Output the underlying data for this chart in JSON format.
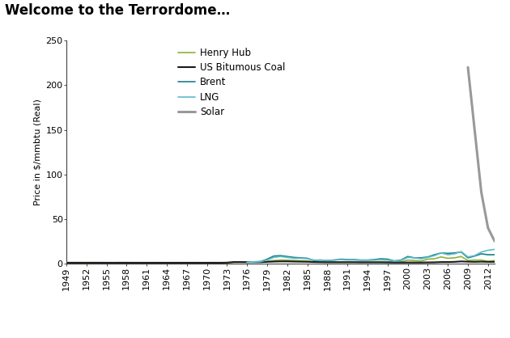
{
  "title": "Welcome to the Terrordome…",
  "ylabel": "Price in $/mmbtu (Real)",
  "henry_hub_color": "#8db33a",
  "coal_color": "#1a1a1a",
  "brent_color": "#1e7b8c",
  "lng_color": "#5bbccc",
  "solar_color": "#999999",
  "ylim": [
    0,
    250
  ],
  "yticks": [
    0,
    50,
    100,
    150,
    200,
    250
  ],
  "xtick_years": [
    1949,
    1952,
    1955,
    1958,
    1961,
    1964,
    1967,
    1970,
    1973,
    1976,
    1979,
    1982,
    1985,
    1988,
    1991,
    1994,
    1997,
    2000,
    2003,
    2006,
    2009,
    2012
  ],
  "legend_labels": [
    "Henry Hub",
    "US Bitumous Coal",
    "Brent",
    "LNG",
    "Solar"
  ],
  "title_fontsize": 12,
  "axis_fontsize": 8,
  "tick_fontsize": 8,
  "hh_data": {
    "1949": 1.2,
    "1950": 1.2,
    "1951": 1.2,
    "1952": 1.2,
    "1953": 1.2,
    "1954": 1.2,
    "1955": 1.1,
    "1956": 1.1,
    "1957": 1.2,
    "1958": 1.2,
    "1959": 1.1,
    "1960": 1.1,
    "1961": 1.0,
    "1962": 1.0,
    "1963": 1.0,
    "1964": 1.0,
    "1965": 1.0,
    "1966": 1.0,
    "1967": 1.0,
    "1968": 1.0,
    "1969": 1.0,
    "1970": 1.0,
    "1971": 1.0,
    "1972": 1.0,
    "1973": 1.1,
    "1974": 1.5,
    "1975": 1.6,
    "1976": 1.6,
    "1977": 1.8,
    "1978": 1.8,
    "1979": 2.5,
    "1980": 3.5,
    "1981": 4.0,
    "1982": 4.0,
    "1983": 3.5,
    "1984": 3.2,
    "1985": 3.0,
    "1986": 2.0,
    "1987": 1.8,
    "1988": 1.7,
    "1989": 1.8,
    "1990": 2.0,
    "1991": 1.7,
    "1992": 1.7,
    "1993": 1.8,
    "1994": 1.7,
    "1995": 1.7,
    "1996": 2.3,
    "1997": 2.0,
    "1998": 1.7,
    "1999": 1.8,
    "2000": 4.0,
    "2001": 3.5,
    "2002": 3.0,
    "2003": 5.0,
    "2004": 5.5,
    "2005": 7.5,
    "2006": 6.0,
    "2007": 6.5,
    "2008": 8.0,
    "2009": 3.5,
    "2010": 4.0,
    "2011": 4.0,
    "2012": 2.5,
    "2013": 3.5
  },
  "coal_data": {
    "1949": 1.0,
    "1950": 1.0,
    "1951": 1.0,
    "1952": 1.0,
    "1953": 1.0,
    "1954": 1.0,
    "1955": 1.0,
    "1956": 1.0,
    "1957": 1.0,
    "1958": 1.0,
    "1959": 1.0,
    "1960": 1.0,
    "1961": 1.0,
    "1962": 1.0,
    "1963": 1.0,
    "1964": 1.0,
    "1965": 1.0,
    "1966": 1.0,
    "1967": 1.0,
    "1968": 1.0,
    "1969": 1.0,
    "1970": 1.0,
    "1971": 1.0,
    "1972": 1.0,
    "1973": 1.1,
    "1974": 1.8,
    "1975": 1.8,
    "1976": 1.7,
    "1977": 1.7,
    "1978": 1.7,
    "1979": 2.0,
    "1980": 2.3,
    "1981": 2.5,
    "1982": 2.5,
    "1983": 2.3,
    "1984": 2.2,
    "1985": 2.1,
    "1986": 1.8,
    "1987": 1.7,
    "1988": 1.6,
    "1989": 1.6,
    "1990": 1.6,
    "1991": 1.6,
    "1992": 1.6,
    "1993": 1.5,
    "1994": 1.5,
    "1995": 1.5,
    "1996": 1.5,
    "1997": 1.4,
    "1998": 1.3,
    "1999": 1.3,
    "2000": 1.3,
    "2001": 1.3,
    "2002": 1.3,
    "2003": 1.4,
    "2004": 1.5,
    "2005": 1.8,
    "2006": 1.8,
    "2007": 2.0,
    "2008": 2.5,
    "2009": 2.2,
    "2010": 2.0,
    "2011": 2.2,
    "2012": 2.0,
    "2013": 2.0
  },
  "brent_data": {
    "1976": 1.5,
    "1977": 2.0,
    "1978": 2.3,
    "1979": 5.0,
    "1980": 8.5,
    "1981": 9.0,
    "1982": 8.0,
    "1983": 7.0,
    "1984": 6.5,
    "1985": 6.0,
    "1986": 3.5,
    "1987": 4.0,
    "1988": 3.5,
    "1989": 4.0,
    "1990": 5.0,
    "1991": 4.5,
    "1992": 4.5,
    "1993": 4.0,
    "1994": 4.0,
    "1995": 4.5,
    "1996": 5.5,
    "1997": 5.0,
    "1998": 3.0,
    "1999": 4.0,
    "2000": 8.0,
    "2001": 6.5,
    "2002": 6.5,
    "2003": 7.5,
    "2004": 10.0,
    "2005": 12.0,
    "2006": 11.5,
    "2007": 12.0,
    "2008": 13.0,
    "2009": 6.5,
    "2010": 8.5,
    "2011": 11.0,
    "2012": 10.0,
    "2013": 10.0
  },
  "lng_data": {
    "1976": 1.5,
    "1977": 2.0,
    "1978": 2.3,
    "1979": 4.0,
    "1980": 7.0,
    "1981": 8.0,
    "1982": 7.0,
    "1983": 6.0,
    "1984": 6.0,
    "1985": 5.5,
    "1986": 4.0,
    "1987": 4.0,
    "1988": 3.5,
    "1989": 4.0,
    "1990": 4.5,
    "1991": 4.0,
    "1992": 4.0,
    "1993": 3.8,
    "1994": 3.8,
    "1995": 3.8,
    "1996": 4.5,
    "1997": 4.0,
    "1998": 3.0,
    "1999": 3.5,
    "2000": 7.0,
    "2001": 6.5,
    "2002": 5.5,
    "2003": 7.0,
    "2004": 9.0,
    "2005": 12.0,
    "2006": 10.0,
    "2007": 11.0,
    "2008": 13.5,
    "2009": 7.5,
    "2010": 9.0,
    "2011": 13.0,
    "2012": 15.0,
    "2013": 16.0
  },
  "solar_data": {
    "2009": 220.0,
    "2010": 150.0,
    "2011": 80.0,
    "2012": 40.0,
    "2013": 25.0
  }
}
